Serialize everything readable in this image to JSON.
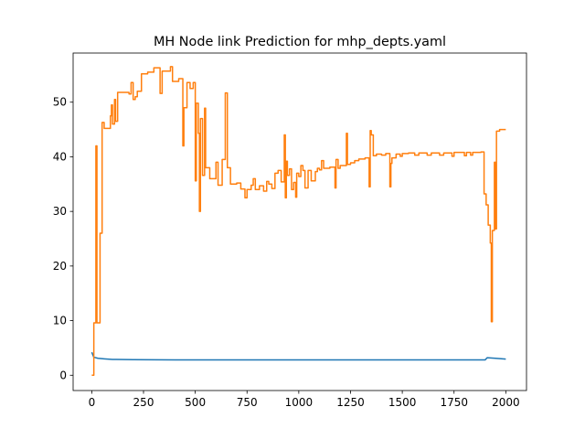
{
  "chart_data": {
    "type": "line",
    "title": "MH Node link Prediction for mhp_depts.yaml",
    "xlabel": "",
    "ylabel": "",
    "xlim": [
      -90,
      2100
    ],
    "ylim": [
      -2.8,
      59
    ],
    "x_ticks": [
      0,
      250,
      500,
      750,
      1000,
      1250,
      1500,
      1750,
      2000
    ],
    "y_ticks": [
      0,
      10,
      20,
      30,
      40,
      50
    ],
    "grid": false,
    "legend": "none",
    "series": [
      {
        "color": "#1f77b4",
        "points": [
          [
            0,
            4.2
          ],
          [
            10,
            3.3
          ],
          [
            30,
            3.1
          ],
          [
            60,
            3.0
          ],
          [
            100,
            2.9
          ],
          [
            200,
            2.85
          ],
          [
            400,
            2.8
          ],
          [
            800,
            2.8
          ],
          [
            1200,
            2.8
          ],
          [
            1600,
            2.8
          ],
          [
            1900,
            2.8
          ],
          [
            1910,
            3.2
          ],
          [
            1950,
            3.1
          ],
          [
            2000,
            2.95
          ]
        ]
      },
      {
        "color": "#ff7f0e",
        "points": [
          [
            0,
            0
          ],
          [
            10,
            0
          ],
          [
            10,
            9.6
          ],
          [
            20,
            9.6
          ],
          [
            20,
            42
          ],
          [
            25,
            42
          ],
          [
            25,
            9.6
          ],
          [
            40,
            9.6
          ],
          [
            40,
            26
          ],
          [
            50,
            26
          ],
          [
            50,
            46.3
          ],
          [
            60,
            46.3
          ],
          [
            60,
            45.2
          ],
          [
            90,
            45.2
          ],
          [
            90,
            47.5
          ],
          [
            95,
            47.5
          ],
          [
            95,
            49.5
          ],
          [
            100,
            49.5
          ],
          [
            100,
            46
          ],
          [
            110,
            46
          ],
          [
            110,
            50.5
          ],
          [
            115,
            50.5
          ],
          [
            115,
            46.5
          ],
          [
            125,
            46.5
          ],
          [
            125,
            51.8
          ],
          [
            180,
            51.8
          ],
          [
            180,
            51.5
          ],
          [
            190,
            51.5
          ],
          [
            190,
            53.6
          ],
          [
            200,
            53.6
          ],
          [
            200,
            50.5
          ],
          [
            210,
            50.5
          ],
          [
            210,
            51
          ],
          [
            220,
            51
          ],
          [
            220,
            52
          ],
          [
            240,
            52
          ],
          [
            240,
            55.2
          ],
          [
            270,
            55.2
          ],
          [
            270,
            55.5
          ],
          [
            300,
            55.5
          ],
          [
            300,
            56.3
          ],
          [
            330,
            56.3
          ],
          [
            330,
            51.6
          ],
          [
            340,
            51.6
          ],
          [
            340,
            55.7
          ],
          [
            380,
            55.7
          ],
          [
            380,
            56.5
          ],
          [
            390,
            56.5
          ],
          [
            390,
            53.8
          ],
          [
            420,
            53.8
          ],
          [
            420,
            54.3
          ],
          [
            440,
            54.3
          ],
          [
            440,
            42
          ],
          [
            445,
            42
          ],
          [
            445,
            49
          ],
          [
            460,
            49
          ],
          [
            460,
            53.6
          ],
          [
            475,
            53.6
          ],
          [
            475,
            52.5
          ],
          [
            490,
            52.5
          ],
          [
            490,
            53.6
          ],
          [
            500,
            53.6
          ],
          [
            500,
            35.6
          ],
          [
            505,
            35.6
          ],
          [
            505,
            49.8
          ],
          [
            515,
            49.8
          ],
          [
            515,
            44.3
          ],
          [
            520,
            44.3
          ],
          [
            520,
            30
          ],
          [
            525,
            30
          ],
          [
            525,
            47
          ],
          [
            535,
            47
          ],
          [
            535,
            36.6
          ],
          [
            545,
            36.6
          ],
          [
            545,
            48.9
          ],
          [
            550,
            48.9
          ],
          [
            550,
            38
          ],
          [
            570,
            38
          ],
          [
            570,
            36
          ],
          [
            600,
            36
          ],
          [
            600,
            39
          ],
          [
            610,
            39
          ],
          [
            610,
            34.8
          ],
          [
            630,
            34.8
          ],
          [
            630,
            39.5
          ],
          [
            645,
            39.5
          ],
          [
            645,
            51.7
          ],
          [
            655,
            51.7
          ],
          [
            655,
            38
          ],
          [
            670,
            38
          ],
          [
            670,
            35
          ],
          [
            700,
            35
          ],
          [
            700,
            35.2
          ],
          [
            720,
            35.2
          ],
          [
            720,
            34.1
          ],
          [
            740,
            34.1
          ],
          [
            740,
            32.5
          ],
          [
            750,
            32.5
          ],
          [
            750,
            34
          ],
          [
            770,
            34
          ],
          [
            770,
            34.8
          ],
          [
            780,
            34.8
          ],
          [
            780,
            36
          ],
          [
            790,
            36
          ],
          [
            790,
            34
          ],
          [
            810,
            34
          ],
          [
            810,
            34.7
          ],
          [
            830,
            34.7
          ],
          [
            830,
            33.7
          ],
          [
            845,
            33.7
          ],
          [
            845,
            35.5
          ],
          [
            855,
            35.5
          ],
          [
            855,
            35
          ],
          [
            870,
            35
          ],
          [
            870,
            34.2
          ],
          [
            885,
            34.2
          ],
          [
            885,
            37
          ],
          [
            900,
            37
          ],
          [
            900,
            37.5
          ],
          [
            915,
            37.5
          ],
          [
            915,
            35.4
          ],
          [
            930,
            35.4
          ],
          [
            930,
            44
          ],
          [
            935,
            44
          ],
          [
            935,
            32.5
          ],
          [
            940,
            32.5
          ],
          [
            940,
            39.2
          ],
          [
            945,
            39.2
          ],
          [
            945,
            36.6
          ],
          [
            955,
            36.6
          ],
          [
            955,
            37.8
          ],
          [
            965,
            37.8
          ],
          [
            965,
            34
          ],
          [
            975,
            34
          ],
          [
            975,
            35.3
          ],
          [
            985,
            35.3
          ],
          [
            985,
            32.6
          ],
          [
            990,
            32.6
          ],
          [
            990,
            37
          ],
          [
            1000,
            37
          ],
          [
            1000,
            36.4
          ],
          [
            1010,
            36.4
          ],
          [
            1010,
            38.4
          ],
          [
            1020,
            38.4
          ],
          [
            1020,
            37.5
          ],
          [
            1030,
            37.5
          ],
          [
            1030,
            34.3
          ],
          [
            1045,
            34.3
          ],
          [
            1045,
            37.5
          ],
          [
            1060,
            37.5
          ],
          [
            1060,
            35.6
          ],
          [
            1080,
            35.6
          ],
          [
            1080,
            37.3
          ],
          [
            1090,
            37.3
          ],
          [
            1090,
            37.9
          ],
          [
            1100,
            37.9
          ],
          [
            1100,
            37.6
          ],
          [
            1110,
            37.6
          ],
          [
            1110,
            39.3
          ],
          [
            1120,
            39.3
          ],
          [
            1120,
            37.9
          ],
          [
            1150,
            37.9
          ],
          [
            1150,
            38.1
          ],
          [
            1175,
            38.1
          ],
          [
            1175,
            34.3
          ],
          [
            1180,
            34.3
          ],
          [
            1180,
            39.5
          ],
          [
            1190,
            39.5
          ],
          [
            1190,
            37.9
          ],
          [
            1200,
            37.9
          ],
          [
            1200,
            38.4
          ],
          [
            1230,
            38.4
          ],
          [
            1230,
            44.3
          ],
          [
            1235,
            44.3
          ],
          [
            1235,
            38.6
          ],
          [
            1250,
            38.6
          ],
          [
            1250,
            38.9
          ],
          [
            1270,
            38.9
          ],
          [
            1270,
            39.3
          ],
          [
            1290,
            39.3
          ],
          [
            1290,
            39.6
          ],
          [
            1320,
            39.6
          ],
          [
            1320,
            39.8
          ],
          [
            1340,
            39.8
          ],
          [
            1340,
            34.5
          ],
          [
            1345,
            34.5
          ],
          [
            1345,
            44.8
          ],
          [
            1350,
            44.8
          ],
          [
            1350,
            44
          ],
          [
            1360,
            44
          ],
          [
            1360,
            40.2
          ],
          [
            1375,
            40.2
          ],
          [
            1375,
            40.5
          ],
          [
            1400,
            40.5
          ],
          [
            1400,
            40.3
          ],
          [
            1420,
            40.3
          ],
          [
            1420,
            40.6
          ],
          [
            1440,
            40.6
          ],
          [
            1440,
            34.5
          ],
          [
            1445,
            34.5
          ],
          [
            1445,
            38.8
          ],
          [
            1450,
            38.8
          ],
          [
            1450,
            39.8
          ],
          [
            1470,
            39.8
          ],
          [
            1470,
            40.5
          ],
          [
            1490,
            40.5
          ],
          [
            1490,
            40.1
          ],
          [
            1500,
            40.1
          ],
          [
            1500,
            40.6
          ],
          [
            1530,
            40.6
          ],
          [
            1530,
            40.7
          ],
          [
            1560,
            40.7
          ],
          [
            1560,
            40.3
          ],
          [
            1580,
            40.3
          ],
          [
            1580,
            40.7
          ],
          [
            1620,
            40.7
          ],
          [
            1620,
            40.3
          ],
          [
            1640,
            40.3
          ],
          [
            1640,
            40.7
          ],
          [
            1680,
            40.7
          ],
          [
            1680,
            40.3
          ],
          [
            1700,
            40.3
          ],
          [
            1700,
            40.7
          ],
          [
            1740,
            40.7
          ],
          [
            1740,
            40.1
          ],
          [
            1750,
            40.1
          ],
          [
            1750,
            40.8
          ],
          [
            1800,
            40.8
          ],
          [
            1800,
            40.2
          ],
          [
            1810,
            40.2
          ],
          [
            1810,
            40.8
          ],
          [
            1830,
            40.8
          ],
          [
            1830,
            40.3
          ],
          [
            1840,
            40.3
          ],
          [
            1840,
            40.8
          ],
          [
            1880,
            40.8
          ],
          [
            1880,
            40.9
          ],
          [
            1895,
            40.9
          ],
          [
            1895,
            33.2
          ],
          [
            1905,
            33.2
          ],
          [
            1905,
            31.2
          ],
          [
            1915,
            31.2
          ],
          [
            1915,
            27.5
          ],
          [
            1925,
            27.5
          ],
          [
            1925,
            24.2
          ],
          [
            1930,
            24.2
          ],
          [
            1930,
            9.8
          ],
          [
            1935,
            9.8
          ],
          [
            1935,
            26.5
          ],
          [
            1945,
            26.5
          ],
          [
            1945,
            39
          ],
          [
            1950,
            39
          ],
          [
            1950,
            26.8
          ],
          [
            1955,
            26.8
          ],
          [
            1955,
            44.7
          ],
          [
            1970,
            44.7
          ],
          [
            1970,
            45
          ],
          [
            2000,
            45
          ]
        ]
      }
    ]
  }
}
